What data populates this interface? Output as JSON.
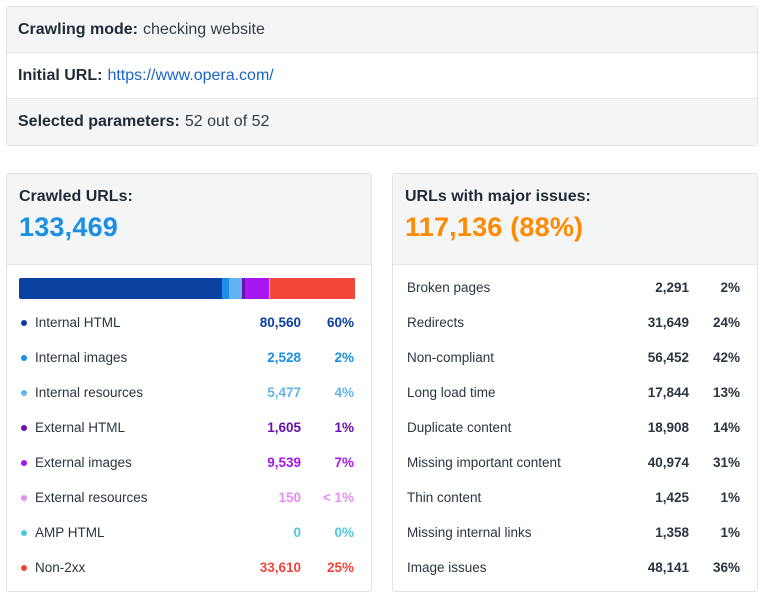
{
  "info": {
    "mode_label": "Crawling mode:",
    "mode_value": "checking website",
    "url_label": "Initial URL:",
    "url_value": "https://www.opera.com/",
    "params_label": "Selected parameters:",
    "params_value": "52 out of 52"
  },
  "crawled": {
    "title": "Crawled URLs:",
    "total": "133,469",
    "items": [
      {
        "name": "Internal HTML",
        "count": "80,560",
        "pct": "60%",
        "color": "#0b3fa0",
        "share": 0.6
      },
      {
        "name": "Internal images",
        "count": "2,528",
        "pct": "2%",
        "color": "#1a8fe3",
        "share": 0.02
      },
      {
        "name": "Internal resources",
        "count": "5,477",
        "pct": "4%",
        "color": "#62b4f0",
        "share": 0.04
      },
      {
        "name": "External HTML",
        "count": "1,605",
        "pct": "1%",
        "color": "#6a0fb0",
        "share": 0.01
      },
      {
        "name": "External images",
        "count": "9,539",
        "pct": "7%",
        "color": "#a617f0",
        "share": 0.07
      },
      {
        "name": "External resources",
        "count": "150",
        "pct": "< 1%",
        "color": "#e78ef5",
        "share": 0.001
      },
      {
        "name": "AMP HTML",
        "count": "0",
        "pct": "0%",
        "color": "#4fc9dc",
        "share": 0
      },
      {
        "name": "Non-2xx",
        "count": "33,610",
        "pct": "25%",
        "color": "#f2453a",
        "share": 0.25
      }
    ]
  },
  "issues": {
    "title": "URLs with major issues:",
    "total": "117,136 (88%)",
    "items": [
      {
        "name": "Broken pages",
        "count": "2,291",
        "pct": "2%"
      },
      {
        "name": "Redirects",
        "count": "31,649",
        "pct": "24%"
      },
      {
        "name": "Non-compliant",
        "count": "56,452",
        "pct": "42%"
      },
      {
        "name": "Long load time",
        "count": "17,844",
        "pct": "13%"
      },
      {
        "name": "Duplicate content",
        "count": "18,908",
        "pct": "14%"
      },
      {
        "name": "Missing important content",
        "count": "40,974",
        "pct": "31%"
      },
      {
        "name": "Thin content",
        "count": "1,425",
        "pct": "1%"
      },
      {
        "name": "Missing internal links",
        "count": "1,358",
        "pct": "1%"
      },
      {
        "name": "Image issues",
        "count": "48,141",
        "pct": "36%"
      }
    ]
  }
}
